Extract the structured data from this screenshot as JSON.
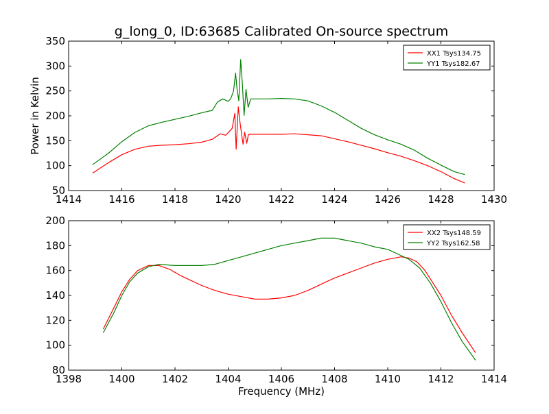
{
  "title": "g_long_0, ID:63685 Calibrated On-source spectrum",
  "chart_data": [
    {
      "type": "line",
      "title": "g_long_0, ID:63685 Calibrated On-source spectrum",
      "xlabel": "",
      "ylabel": "Power in Kelvin",
      "xlim": [
        1414,
        1430
      ],
      "ylim": [
        50,
        350
      ],
      "xticks": [
        "1414",
        "1416",
        "1418",
        "1420",
        "1422",
        "1424",
        "1426",
        "1428",
        "1430"
      ],
      "yticks": [
        "50",
        "100",
        "150",
        "200",
        "250",
        "300",
        "350"
      ],
      "legend_position": "top-right",
      "series": [
        {
          "name": "XX1 Tsys134.75",
          "color": "#ff0000",
          "x": [
            1414.9,
            1415.5,
            1416.0,
            1416.5,
            1417.0,
            1417.5,
            1418.0,
            1418.5,
            1419.0,
            1419.4,
            1419.7,
            1419.9,
            1420.0,
            1420.15,
            1420.25,
            1420.3,
            1420.38,
            1420.45,
            1420.5,
            1420.56,
            1420.62,
            1420.7,
            1420.76,
            1420.85,
            1421.0,
            1421.5,
            1422.0,
            1422.5,
            1423.0,
            1423.5,
            1424.0,
            1424.5,
            1425.0,
            1425.5,
            1426.0,
            1426.5,
            1427.0,
            1427.5,
            1428.0,
            1428.5,
            1428.9
          ],
          "values": [
            85,
            106,
            122,
            133,
            139,
            141,
            142,
            144,
            147,
            153,
            164,
            161,
            166,
            175,
            205,
            133,
            218,
            185,
            165,
            143,
            167,
            145,
            162,
            163,
            163,
            163,
            163,
            164,
            162,
            160,
            154,
            148,
            141,
            134,
            126,
            119,
            110,
            100,
            88,
            74,
            65
          ]
        },
        {
          "name": "YY1 Tsys182.67",
          "color": "#008000",
          "x": [
            1414.9,
            1415.5,
            1416.0,
            1416.5,
            1417.0,
            1417.5,
            1418.0,
            1418.5,
            1419.0,
            1419.4,
            1419.6,
            1419.8,
            1420.0,
            1420.1,
            1420.2,
            1420.28,
            1420.33,
            1420.4,
            1420.47,
            1420.53,
            1420.6,
            1420.67,
            1420.75,
            1420.85,
            1421.0,
            1421.5,
            1422.0,
            1422.5,
            1423.0,
            1423.5,
            1424.0,
            1424.5,
            1425.0,
            1425.5,
            1426.0,
            1426.5,
            1427.0,
            1427.5,
            1428.0,
            1428.5,
            1428.9
          ],
          "values": [
            102,
            125,
            148,
            167,
            180,
            187,
            193,
            199,
            206,
            211,
            228,
            234,
            229,
            235,
            250,
            286,
            255,
            230,
            313,
            268,
            201,
            253,
            217,
            234,
            234,
            234,
            235,
            234,
            230,
            220,
            207,
            191,
            175,
            162,
            152,
            143,
            131,
            115,
            101,
            88,
            82
          ]
        }
      ]
    },
    {
      "type": "line",
      "title": "",
      "xlabel": "Frequency (MHz)",
      "ylabel": "",
      "xlim": [
        1398,
        1414
      ],
      "ylim": [
        80,
        200
      ],
      "xticks": [
        "1398",
        "1400",
        "1402",
        "1404",
        "1406",
        "1408",
        "1410",
        "1412",
        "1414"
      ],
      "yticks": [
        "80",
        "100",
        "120",
        "140",
        "160",
        "180",
        "200"
      ],
      "legend_position": "top-right",
      "series": [
        {
          "name": "XX2 Tsys148.59",
          "color": "#ff0000",
          "x": [
            1399.3,
            1399.7,
            1400.0,
            1400.3,
            1400.6,
            1401.0,
            1401.4,
            1401.8,
            1402.2,
            1402.6,
            1403.0,
            1403.5,
            1404.0,
            1404.5,
            1405.0,
            1405.5,
            1406.0,
            1406.5,
            1407.0,
            1407.5,
            1408.0,
            1408.5,
            1409.0,
            1409.5,
            1410.0,
            1410.5,
            1410.8,
            1411.1,
            1411.4,
            1411.7,
            1412.0,
            1412.4,
            1412.8,
            1413.3
          ],
          "values": [
            113,
            130,
            143,
            153,
            160,
            164,
            164,
            161,
            156,
            152,
            148,
            144,
            141,
            139,
            137,
            137,
            138,
            140,
            144,
            149,
            154,
            158,
            162,
            166,
            169,
            171,
            170,
            167,
            160,
            150,
            140,
            124,
            110,
            94
          ]
        },
        {
          "name": "YY2 Tsys162.58",
          "color": "#008000",
          "x": [
            1399.3,
            1399.7,
            1400.0,
            1400.3,
            1400.6,
            1401.0,
            1401.4,
            1402.0,
            1402.5,
            1403.0,
            1403.5,
            1404.0,
            1404.5,
            1405.0,
            1405.5,
            1406.0,
            1406.5,
            1407.0,
            1407.5,
            1408.0,
            1408.5,
            1409.0,
            1409.5,
            1410.0,
            1410.4,
            1410.8,
            1411.2,
            1411.6,
            1412.0,
            1412.4,
            1412.8,
            1413.3
          ],
          "values": [
            110,
            126,
            140,
            151,
            158,
            163,
            165,
            164,
            164,
            164,
            165,
            168,
            171,
            174,
            177,
            180,
            182,
            184,
            186,
            186,
            184,
            182,
            179,
            177,
            173,
            169,
            162,
            150,
            135,
            118,
            103,
            88
          ]
        }
      ]
    }
  ]
}
